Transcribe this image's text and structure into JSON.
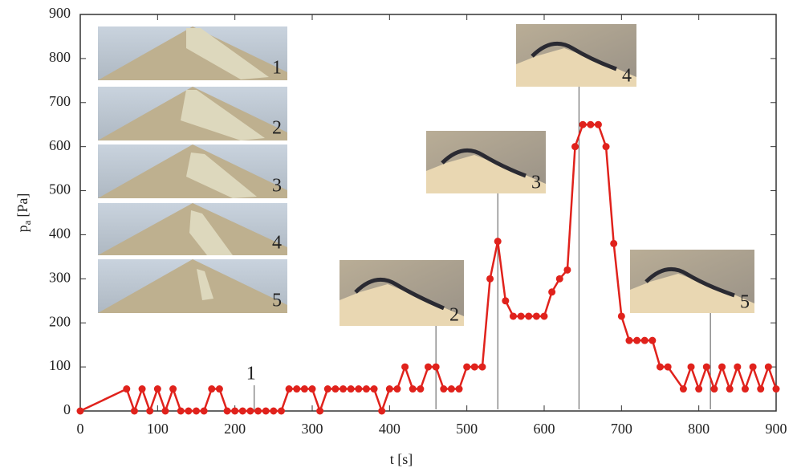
{
  "chart_data": {
    "type": "line",
    "xlabel": "t [s]",
    "ylabel_main": "p",
    "ylabel_sub": "a",
    "ylabel_unit": "[Pa]",
    "x": [
      0,
      60,
      70,
      80,
      90,
      100,
      110,
      120,
      130,
      140,
      150,
      160,
      170,
      180,
      190,
      200,
      210,
      220,
      230,
      240,
      250,
      260,
      270,
      280,
      290,
      300,
      310,
      320,
      330,
      340,
      350,
      360,
      370,
      380,
      390,
      400,
      410,
      420,
      430,
      440,
      450,
      460,
      470,
      480,
      490,
      500,
      510,
      520,
      530,
      540,
      550,
      560,
      570,
      580,
      590,
      600,
      610,
      620,
      630,
      640,
      650,
      660,
      670,
      680,
      690,
      700,
      710,
      720,
      730,
      740,
      750,
      760,
      780,
      790,
      800,
      810,
      820,
      830,
      840,
      850,
      860,
      870,
      880,
      890,
      900
    ],
    "series": [
      {
        "name": "p",
        "color": "#e0221c",
        "values": [
          0,
          50,
          0,
          50,
          0,
          50,
          0,
          50,
          0,
          0,
          0,
          0,
          50,
          50,
          0,
          0,
          0,
          0,
          0,
          0,
          0,
          0,
          50,
          50,
          50,
          50,
          0,
          50,
          50,
          50,
          50,
          50,
          50,
          50,
          0,
          50,
          50,
          100,
          50,
          50,
          100,
          100,
          50,
          50,
          50,
          100,
          100,
          100,
          300,
          385,
          250,
          215,
          215,
          215,
          215,
          215,
          270,
          300,
          320,
          600,
          650,
          650,
          650,
          600,
          380,
          215,
          160,
          160,
          160,
          160,
          100,
          100,
          50,
          100,
          50,
          100,
          50,
          100,
          50,
          100,
          50,
          100,
          50,
          100,
          50
        ]
      }
    ],
    "xlim": [
      0,
      900
    ],
    "xticks": [
      0,
      100,
      200,
      300,
      400,
      500,
      600,
      700,
      800,
      900
    ],
    "ylim": [
      0,
      900
    ],
    "yticks": [
      0,
      100,
      200,
      300,
      400,
      500,
      600,
      700,
      800,
      900
    ],
    "grid": false,
    "inset_labels": [
      "1",
      "2",
      "3",
      "4",
      "5"
    ],
    "annotations": [
      {
        "label": "1",
        "x": 225
      },
      {
        "label": "2",
        "x": 460
      },
      {
        "label": "3",
        "x": 540
      },
      {
        "label": "4",
        "x": 645
      },
      {
        "label": "5",
        "x": 815
      }
    ]
  }
}
